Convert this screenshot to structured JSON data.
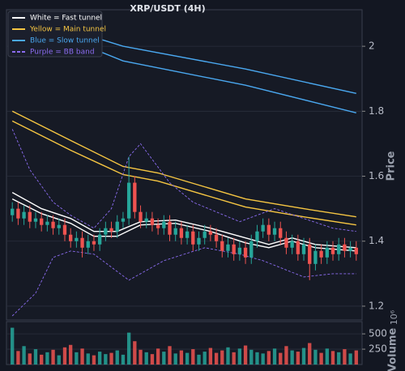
{
  "chart_data": {
    "type": "candlestick",
    "title": "XRP/USDT (4H)",
    "ylabel": "Price",
    "xlim": [
      -1,
      60
    ],
    "ylim": [
      1.1575,
      2.1125
    ],
    "yticks": [
      1.2,
      1.4,
      1.6,
      1.8,
      2.0
    ],
    "grid": true,
    "up_color": "#26a69a",
    "down_color": "#ef5350",
    "legend": "upper left",
    "open": [
      1.48,
      1.5,
      1.47,
      1.49,
      1.46,
      1.47,
      1.45,
      1.46,
      1.44,
      1.45,
      1.42,
      1.4,
      1.41,
      1.38,
      1.4,
      1.39,
      1.42,
      1.44,
      1.43,
      1.46,
      1.47,
      1.58,
      1.49,
      1.46,
      1.47,
      1.45,
      1.44,
      1.46,
      1.42,
      1.44,
      1.41,
      1.43,
      1.39,
      1.41,
      1.43,
      1.42,
      1.4,
      1.37,
      1.39,
      1.36,
      1.38,
      1.35,
      1.4,
      1.43,
      1.45,
      1.42,
      1.44,
      1.41,
      1.38,
      1.4,
      1.36,
      1.39,
      1.33,
      1.37,
      1.35,
      1.38,
      1.36,
      1.39,
      1.37,
      1.38
    ],
    "high": [
      1.52,
      1.52,
      1.51,
      1.51,
      1.49,
      1.49,
      1.48,
      1.48,
      1.47,
      1.47,
      1.44,
      1.43,
      1.43,
      1.42,
      1.42,
      1.44,
      1.46,
      1.46,
      1.48,
      1.49,
      1.66,
      1.6,
      1.51,
      1.49,
      1.49,
      1.47,
      1.48,
      1.48,
      1.46,
      1.46,
      1.45,
      1.45,
      1.43,
      1.45,
      1.45,
      1.44,
      1.42,
      1.41,
      1.41,
      1.4,
      1.4,
      1.42,
      1.45,
      1.47,
      1.47,
      1.46,
      1.46,
      1.43,
      1.42,
      1.42,
      1.41,
      1.41,
      1.39,
      1.39,
      1.4,
      1.4,
      1.41,
      1.41,
      1.4,
      1.4
    ],
    "low": [
      1.46,
      1.45,
      1.45,
      1.44,
      1.44,
      1.43,
      1.43,
      1.42,
      1.42,
      1.4,
      1.38,
      1.38,
      1.35,
      1.36,
      1.37,
      1.37,
      1.4,
      1.41,
      1.41,
      1.44,
      1.45,
      1.47,
      1.44,
      1.44,
      1.43,
      1.42,
      1.42,
      1.4,
      1.4,
      1.39,
      1.39,
      1.37,
      1.37,
      1.39,
      1.4,
      1.38,
      1.35,
      1.35,
      1.34,
      1.34,
      1.33,
      1.33,
      1.38,
      1.41,
      1.4,
      1.4,
      1.39,
      1.36,
      1.36,
      1.34,
      1.34,
      1.28,
      1.31,
      1.33,
      1.33,
      1.34,
      1.34,
      1.35,
      1.35,
      1.34
    ],
    "close": [
      1.5,
      1.47,
      1.49,
      1.46,
      1.47,
      1.45,
      1.46,
      1.44,
      1.45,
      1.42,
      1.4,
      1.41,
      1.38,
      1.4,
      1.39,
      1.42,
      1.44,
      1.43,
      1.46,
      1.47,
      1.58,
      1.49,
      1.46,
      1.47,
      1.45,
      1.44,
      1.46,
      1.42,
      1.44,
      1.41,
      1.43,
      1.39,
      1.41,
      1.43,
      1.42,
      1.4,
      1.37,
      1.39,
      1.36,
      1.38,
      1.35,
      1.4,
      1.43,
      1.45,
      1.42,
      1.44,
      1.41,
      1.38,
      1.4,
      1.36,
      1.39,
      1.33,
      1.37,
      1.35,
      1.38,
      1.36,
      1.39,
      1.37,
      1.38,
      1.36
    ],
    "series": [
      {
        "name": "White = Fast tunnel",
        "color": "#ffffff",
        "lines": [
          {
            "x": [
              0,
              5,
              10,
              14,
              18,
              22,
              28,
              34,
              40,
              44,
              48,
              52,
              59
            ],
            "values": [
              1.55,
              1.5,
              1.47,
              1.43,
              1.43,
              1.46,
              1.465,
              1.44,
              1.41,
              1.39,
              1.41,
              1.39,
              1.38
            ]
          },
          {
            "x": [
              0,
              5,
              10,
              14,
              18,
              22,
              28,
              34,
              40,
              44,
              48,
              52,
              59
            ],
            "values": [
              1.53,
              1.485,
              1.455,
              1.415,
              1.415,
              1.45,
              1.455,
              1.43,
              1.395,
              1.38,
              1.4,
              1.38,
              1.37
            ]
          }
        ]
      },
      {
        "name": "Yellow = Main tunnel",
        "color": "#f5c542",
        "lines": [
          {
            "x": [
              0,
              10,
              19,
              25,
              40,
              50,
              59
            ],
            "values": [
              1.8,
              1.71,
              1.63,
              1.61,
              1.53,
              1.5,
              1.475
            ]
          },
          {
            "x": [
              0,
              10,
              19,
              25,
              40,
              50,
              59
            ],
            "values": [
              1.77,
              1.68,
              1.605,
              1.585,
              1.505,
              1.475,
              1.45
            ]
          }
        ]
      },
      {
        "name": "Blue = Slow tunnel",
        "color": "#4aa8f0",
        "lines": [
          {
            "x": [
              0,
              10,
              19,
              40,
              59
            ],
            "values": [
              2.095,
              2.05,
              2.0,
              1.93,
              1.855
            ]
          },
          {
            "x": [
              0,
              10,
              19,
              40,
              59
            ],
            "values": [
              2.09,
              2.02,
              1.955,
              1.88,
              1.795
            ]
          }
        ]
      },
      {
        "name": "Purple = BB band",
        "color": "#8b6cf0",
        "dash": true,
        "lines": [
          {
            "x": [
              0,
              3,
              7,
              10,
              14,
              17,
              20,
              22,
              27,
              31,
              39,
              45,
              50,
              55,
              59
            ],
            "values": [
              1.745,
              1.62,
              1.52,
              1.48,
              1.44,
              1.5,
              1.66,
              1.7,
              1.58,
              1.52,
              1.46,
              1.5,
              1.47,
              1.44,
              1.43
            ]
          },
          {
            "x": [
              0,
              4,
              7,
              10,
              14,
              20,
              26,
              33,
              39,
              43,
              50,
              55,
              59
            ],
            "values": [
              1.17,
              1.24,
              1.35,
              1.37,
              1.36,
              1.28,
              1.34,
              1.38,
              1.36,
              1.34,
              1.29,
              1.3,
              1.3
            ]
          }
        ]
      }
    ],
    "volume": {
      "ylabel": "Volume",
      "multiplier": "10⁶",
      "ylim": [
        0,
        700
      ],
      "yticks": [
        250,
        500
      ],
      "values": [
        600,
        220,
        300,
        180,
        250,
        160,
        200,
        240,
        150,
        280,
        320,
        200,
        260,
        180,
        150,
        210,
        170,
        190,
        230,
        160,
        520,
        380,
        240,
        200,
        170,
        260,
        210,
        300,
        180,
        230,
        190,
        250,
        160,
        210,
        270,
        190,
        230,
        280,
        200,
        260,
        310,
        240,
        200,
        180,
        220,
        260,
        190,
        300,
        230,
        210,
        270,
        350,
        240,
        190,
        260,
        220,
        200,
        250,
        180,
        230
      ]
    }
  }
}
